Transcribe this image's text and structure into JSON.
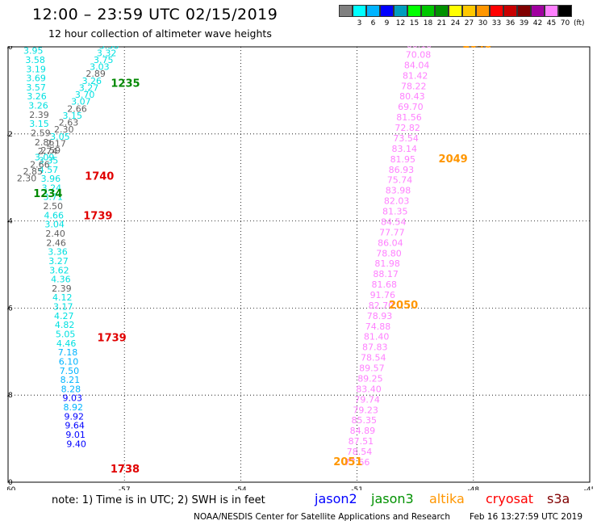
{
  "header": {
    "title": "12:00 – 23:59 UTC 02/15/2019",
    "subtitle": "12 hour collection of altimeter wave heights"
  },
  "color_scale": {
    "unit": "(ft)",
    "bins": [
      {
        "color": "#808080",
        "label": ""
      },
      {
        "color": "#00ffff",
        "label": "3"
      },
      {
        "color": "#00b4ff",
        "label": "6"
      },
      {
        "color": "#0000ff",
        "label": "9"
      },
      {
        "color": "#009dbd",
        "label": "12"
      },
      {
        "color": "#00ff00",
        "label": "15"
      },
      {
        "color": "#00c800",
        "label": "18"
      },
      {
        "color": "#009100",
        "label": "21"
      },
      {
        "color": "#ffff00",
        "label": "24"
      },
      {
        "color": "#ffc800",
        "label": "27"
      },
      {
        "color": "#ff9600",
        "label": "30"
      },
      {
        "color": "#ff0000",
        "label": "33"
      },
      {
        "color": "#c80000",
        "label": "36"
      },
      {
        "color": "#800000",
        "label": "39"
      },
      {
        "color": "#a000a0",
        "label": "42"
      },
      {
        "color": "#ff80ff",
        "label": "45"
      },
      {
        "color": "#000000",
        "label": "70"
      }
    ]
  },
  "map": {
    "lon_range": [
      -60,
      -45
    ],
    "lat_range": [
      -50,
      -40
    ],
    "lon_ticks": [
      "-60",
      "-57",
      "-54",
      "-51",
      "-48",
      "-45"
    ],
    "lat_ticks": [
      "-40",
      "-42",
      "-44",
      "-46",
      "-48",
      "-50"
    ],
    "tracks": [
      {
        "name": "left-track-cyan",
        "entries": [
          {
            "lon": -59.35,
            "lat": -40.16,
            "text": "3.95",
            "color": "#00e0e0"
          },
          {
            "lon": -59.3,
            "lat": -40.37,
            "text": "3.58",
            "color": "#00e0e0"
          },
          {
            "lon": -59.28,
            "lat": -40.58,
            "text": "3.19",
            "color": "#00e0e0"
          },
          {
            "lon": -59.28,
            "lat": -40.79,
            "text": "3.69",
            "color": "#00e0e0"
          },
          {
            "lon": -59.28,
            "lat": -41.0,
            "text": "3.57",
            "color": "#00e0e0"
          },
          {
            "lon": -59.26,
            "lat": -41.21,
            "text": "3.26",
            "color": "#00e0e0"
          },
          {
            "lon": -59.22,
            "lat": -41.42,
            "text": "3.26",
            "color": "#00e0e0"
          },
          {
            "lon": -59.2,
            "lat": -41.63,
            "text": "2.39",
            "color": "#606060"
          },
          {
            "lon": -59.2,
            "lat": -41.84,
            "text": "3.15",
            "color": "#00e0e0"
          },
          {
            "lon": -59.16,
            "lat": -42.05,
            "text": "2.59",
            "color": "#606060"
          },
          {
            "lon": -59.06,
            "lat": -42.26,
            "text": "2.86",
            "color": "#606060"
          },
          {
            "lon": -58.98,
            "lat": -42.47,
            "text": "2.74",
            "color": "#606060"
          },
          {
            "lon": -58.96,
            "lat": -42.68,
            "text": "3.35",
            "color": "#00e0e0"
          },
          {
            "lon": -58.96,
            "lat": -42.89,
            "text": "4.57",
            "color": "#00e0e0"
          },
          {
            "lon": -58.9,
            "lat": -43.1,
            "text": "3.96",
            "color": "#00e0e0"
          },
          {
            "lon": -58.88,
            "lat": -43.31,
            "text": "3.24",
            "color": "#00e0e0"
          },
          {
            "lon": -58.84,
            "lat": -43.52,
            "text": "3.71",
            "color": "#00e0e0"
          },
          {
            "lon": -58.84,
            "lat": -43.73,
            "text": "2.50",
            "color": "#606060"
          },
          {
            "lon": -58.82,
            "lat": -43.94,
            "text": "4.66",
            "color": "#00e0e0"
          },
          {
            "lon": -58.8,
            "lat": -44.15,
            "text": "3.04",
            "color": "#00e0e0"
          },
          {
            "lon": -58.78,
            "lat": -44.36,
            "text": "2.40",
            "color": "#606060"
          },
          {
            "lon": -58.76,
            "lat": -44.57,
            "text": "2.46",
            "color": "#606060"
          },
          {
            "lon": -58.72,
            "lat": -44.78,
            "text": "3.36",
            "color": "#00e0e0"
          },
          {
            "lon": -58.7,
            "lat": -44.99,
            "text": "3.27",
            "color": "#00e0e0"
          },
          {
            "lon": -58.68,
            "lat": -45.2,
            "text": "3.62",
            "color": "#00e0e0"
          },
          {
            "lon": -58.64,
            "lat": -45.41,
            "text": "4.36",
            "color": "#00e0e0"
          },
          {
            "lon": -58.62,
            "lat": -45.62,
            "text": "2.39",
            "color": "#606060"
          },
          {
            "lon": -58.6,
            "lat": -45.83,
            "text": "4.12",
            "color": "#00e0e0"
          },
          {
            "lon": -58.58,
            "lat": -46.04,
            "text": "3.17",
            "color": "#00e0e0"
          },
          {
            "lon": -58.56,
            "lat": -46.25,
            "text": "4.27",
            "color": "#00e0e0"
          },
          {
            "lon": -58.54,
            "lat": -46.46,
            "text": "4.82",
            "color": "#00e0e0"
          },
          {
            "lon": -58.52,
            "lat": -46.67,
            "text": "5.05",
            "color": "#00e0e0"
          },
          {
            "lon": -58.5,
            "lat": -46.88,
            "text": "4.46",
            "color": "#00e0e0"
          },
          {
            "lon": -58.46,
            "lat": -47.09,
            "text": "7.18",
            "color": "#00b4ff"
          },
          {
            "lon": -58.44,
            "lat": -47.3,
            "text": "6.10",
            "color": "#00b4ff"
          },
          {
            "lon": -58.42,
            "lat": -47.51,
            "text": "7.50",
            "color": "#00b4ff"
          },
          {
            "lon": -58.4,
            "lat": -47.72,
            "text": "8.21",
            "color": "#00b4ff"
          },
          {
            "lon": -58.38,
            "lat": -47.93,
            "text": "8.28",
            "color": "#00b4ff"
          },
          {
            "lon": -58.34,
            "lat": -48.14,
            "text": "9.03",
            "color": "#0000ff"
          },
          {
            "lon": -58.32,
            "lat": -48.35,
            "text": "8.92",
            "color": "#00b4ff"
          },
          {
            "lon": -58.3,
            "lat": -48.56,
            "text": "9.92",
            "color": "#0000ff"
          },
          {
            "lon": -58.28,
            "lat": -48.77,
            "text": "9.64",
            "color": "#0000ff"
          },
          {
            "lon": -58.26,
            "lat": -48.98,
            "text": "9.01",
            "color": "#0000ff"
          },
          {
            "lon": -58.24,
            "lat": -49.19,
            "text": "9.40",
            "color": "#0000ff"
          }
        ]
      },
      {
        "name": "diagonal-track",
        "entries": [
          {
            "lon": -57.4,
            "lat": -40.05,
            "text": "3.36",
            "color": "#00e0e0"
          },
          {
            "lon": -57.46,
            "lat": -40.21,
            "text": "3.32",
            "color": "#00e0e0"
          },
          {
            "lon": -57.54,
            "lat": -40.37,
            "text": "3.75",
            "color": "#00e0e0"
          },
          {
            "lon": -57.64,
            "lat": -40.53,
            "text": "3.03",
            "color": "#00e0e0"
          },
          {
            "lon": -57.74,
            "lat": -40.69,
            "text": "2.89",
            "color": "#606060"
          },
          {
            "lon": -57.84,
            "lat": -40.85,
            "text": "3.26",
            "color": "#00e0e0"
          },
          {
            "lon": -57.92,
            "lat": -41.01,
            "text": "3.27",
            "color": "#00e0e0"
          },
          {
            "lon": -58.02,
            "lat": -41.17,
            "text": "3.70",
            "color": "#00e0e0"
          },
          {
            "lon": -58.12,
            "lat": -41.33,
            "text": "3.07",
            "color": "#00e0e0"
          },
          {
            "lon": -58.22,
            "lat": -41.49,
            "text": "2.66",
            "color": "#606060"
          },
          {
            "lon": -58.34,
            "lat": -41.65,
            "text": "3.15",
            "color": "#00e0e0"
          },
          {
            "lon": -58.44,
            "lat": -41.81,
            "text": "2.63",
            "color": "#606060"
          },
          {
            "lon": -58.56,
            "lat": -41.97,
            "text": "2.30",
            "color": "#606060"
          },
          {
            "lon": -58.66,
            "lat": -42.13,
            "text": "3.05",
            "color": "#00e0e0"
          },
          {
            "lon": -58.76,
            "lat": -42.29,
            "text": "2.17",
            "color": "#606060"
          },
          {
            "lon": -58.9,
            "lat": -42.45,
            "text": "2.59",
            "color": "#606060"
          },
          {
            "lon": -59.06,
            "lat": -42.61,
            "text": "3.09",
            "color": "#00e0e0"
          },
          {
            "lon": -59.18,
            "lat": -42.77,
            "text": "2.66",
            "color": "#606060"
          },
          {
            "lon": -59.36,
            "lat": -42.93,
            "text": "2.85",
            "color": "#606060"
          },
          {
            "lon": -59.52,
            "lat": -43.09,
            "text": "2.30",
            "color": "#606060"
          }
        ]
      },
      {
        "name": "right-track-pink",
        "entries": [
          {
            "lon": -49.4,
            "lat": -40.02,
            "text": "66.10",
            "color": "#ff99ff"
          },
          {
            "lon": -49.42,
            "lat": -40.25,
            "text": "70.08",
            "color": "#ff80ff"
          },
          {
            "lon": -49.46,
            "lat": -40.49,
            "text": "84.04",
            "color": "#ff80ff"
          },
          {
            "lon": -49.5,
            "lat": -40.73,
            "text": "81.42",
            "color": "#ff80ff"
          },
          {
            "lon": -49.54,
            "lat": -40.97,
            "text": "78.22",
            "color": "#ff80ff"
          },
          {
            "lon": -49.58,
            "lat": -41.21,
            "text": "80.43",
            "color": "#ff80ff"
          },
          {
            "lon": -49.62,
            "lat": -41.45,
            "text": "69.70",
            "color": "#ff80ff"
          },
          {
            "lon": -49.66,
            "lat": -41.69,
            "text": "81.56",
            "color": "#ff80ff"
          },
          {
            "lon": -49.7,
            "lat": -41.93,
            "text": "72.82",
            "color": "#ff80ff"
          },
          {
            "lon": -49.74,
            "lat": -42.17,
            "text": "73.54",
            "color": "#ff80ff"
          },
          {
            "lon": -49.78,
            "lat": -42.41,
            "text": "83.14",
            "color": "#ff80ff"
          },
          {
            "lon": -49.82,
            "lat": -42.65,
            "text": "81.95",
            "color": "#ff80ff"
          },
          {
            "lon": -49.86,
            "lat": -42.89,
            "text": "86.93",
            "color": "#ff80ff"
          },
          {
            "lon": -49.9,
            "lat": -43.13,
            "text": "75.74",
            "color": "#ff80ff"
          },
          {
            "lon": -49.94,
            "lat": -43.37,
            "text": "83.98",
            "color": "#ff80ff"
          },
          {
            "lon": -49.98,
            "lat": -43.61,
            "text": "82.03",
            "color": "#ff80ff"
          },
          {
            "lon": -50.02,
            "lat": -43.85,
            "text": "81.35",
            "color": "#ff80ff"
          },
          {
            "lon": -50.06,
            "lat": -44.09,
            "text": "84.54",
            "color": "#ff80ff"
          },
          {
            "lon": -50.1,
            "lat": -44.33,
            "text": "77.77",
            "color": "#ff80ff"
          },
          {
            "lon": -50.14,
            "lat": -44.57,
            "text": "86.04",
            "color": "#ff80ff"
          },
          {
            "lon": -50.18,
            "lat": -44.81,
            "text": "78.80",
            "color": "#ff80ff"
          },
          {
            "lon": -50.22,
            "lat": -45.05,
            "text": "81.98",
            "color": "#ff80ff"
          },
          {
            "lon": -50.26,
            "lat": -45.29,
            "text": "88.17",
            "color": "#ff80ff"
          },
          {
            "lon": -50.3,
            "lat": -45.53,
            "text": "81.68",
            "color": "#ff80ff"
          },
          {
            "lon": -50.34,
            "lat": -45.77,
            "text": "91.76",
            "color": "#ff80ff"
          },
          {
            "lon": -50.38,
            "lat": -46.01,
            "text": "82.70",
            "color": "#ff80ff"
          },
          {
            "lon": -50.42,
            "lat": -46.25,
            "text": "78.93",
            "color": "#ff80ff"
          },
          {
            "lon": -50.46,
            "lat": -46.49,
            "text": "74.88",
            "color": "#ff80ff"
          },
          {
            "lon": -50.5,
            "lat": -46.73,
            "text": "81.40",
            "color": "#ff80ff"
          },
          {
            "lon": -50.54,
            "lat": -46.97,
            "text": "87.83",
            "color": "#ff80ff"
          },
          {
            "lon": -50.58,
            "lat": -47.21,
            "text": "78.54",
            "color": "#ff80ff"
          },
          {
            "lon": -50.62,
            "lat": -47.45,
            "text": "89.57",
            "color": "#ff80ff"
          },
          {
            "lon": -50.66,
            "lat": -47.69,
            "text": "89.25",
            "color": "#ff80ff"
          },
          {
            "lon": -50.7,
            "lat": -47.93,
            "text": "83.40",
            "color": "#ff80ff"
          },
          {
            "lon": -50.74,
            "lat": -48.17,
            "text": "79.74",
            "color": "#ff80ff"
          },
          {
            "lon": -50.78,
            "lat": -48.41,
            "text": "79.23",
            "color": "#ff80ff"
          },
          {
            "lon": -50.82,
            "lat": -48.65,
            "text": "85.35",
            "color": "#ff80ff"
          },
          {
            "lon": -50.86,
            "lat": -48.89,
            "text": "84.89",
            "color": "#ff80ff"
          },
          {
            "lon": -50.9,
            "lat": -49.13,
            "text": "87.51",
            "color": "#ff80ff"
          },
          {
            "lon": -50.94,
            "lat": -49.37,
            "text": "78.54",
            "color": "#ff80ff"
          },
          {
            "lon": -51.0,
            "lat": -49.61,
            "text": "77.66",
            "color": "#ff80ff"
          }
        ]
      }
    ],
    "time_labels": [
      {
        "lon": -57.35,
        "lat": -40.92,
        "text": "1235",
        "color": "#008800"
      },
      {
        "lon": -58.02,
        "lat": -43.05,
        "text": "1740",
        "color": "#e00000"
      },
      {
        "lon": -59.35,
        "lat": -43.45,
        "text": "1234",
        "color": "#008800"
      },
      {
        "lon": -58.06,
        "lat": -43.96,
        "text": "1739",
        "color": "#e00000"
      },
      {
        "lon": -57.7,
        "lat": -46.76,
        "text": "1739",
        "color": "#e00000"
      },
      {
        "lon": -57.36,
        "lat": -49.78,
        "text": "1738",
        "color": "#e00000"
      },
      {
        "lon": -48.28,
        "lat": -40.02,
        "text": "2048",
        "color": "#ff9600"
      },
      {
        "lon": -48.9,
        "lat": -42.65,
        "text": "2049",
        "color": "#ff9600"
      },
      {
        "lon": -50.18,
        "lat": -46.01,
        "text": "2050",
        "color": "#ff9600"
      },
      {
        "lon": -51.61,
        "lat": -49.61,
        "text": "2051",
        "color": "#ff9600"
      }
    ]
  },
  "note": "note: 1) Time is in UTC; 2) SWH is in feet",
  "legend": [
    {
      "label": "jason2",
      "color": "#0000ff"
    },
    {
      "label": "jason3",
      "color": "#009100"
    },
    {
      "label": "altika",
      "color": "#ff9600"
    },
    {
      "label": "cryosat",
      "color": "#ff0000"
    },
    {
      "label": "s3a",
      "color": "#800000"
    }
  ],
  "credit": {
    "org": "NOAA/NESDIS Center for Satellite Applications and Research",
    "timestamp": "Feb 16 13:27:59 UTC 2019"
  }
}
